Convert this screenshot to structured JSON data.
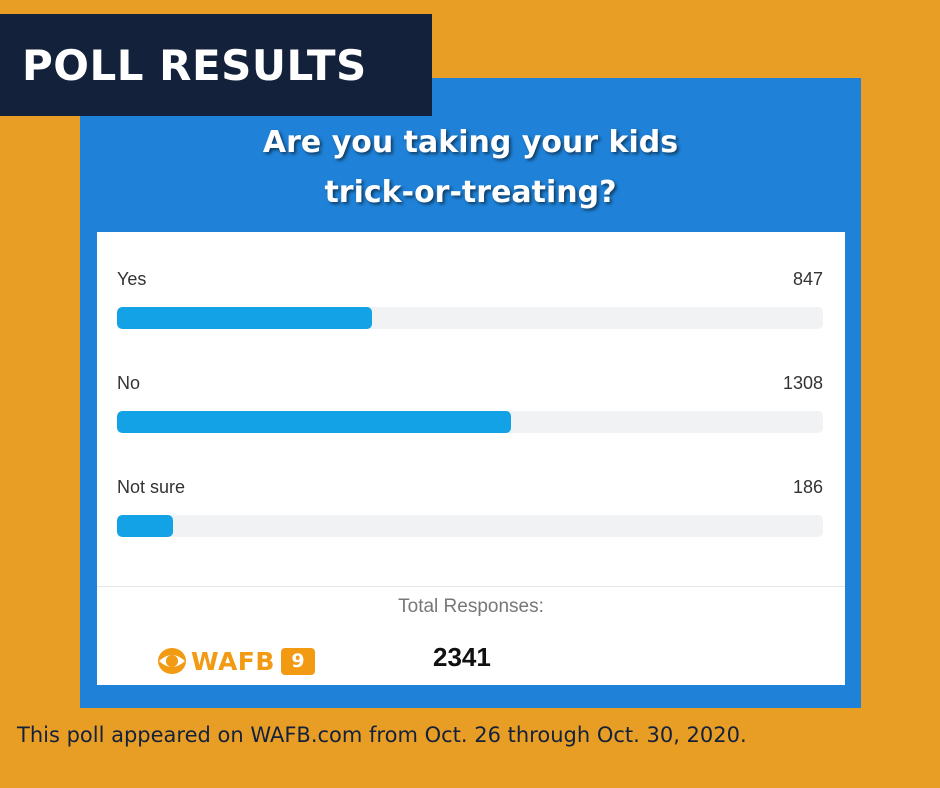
{
  "header": {
    "badge": "POLL RESULTS"
  },
  "question": {
    "line1": "Are you taking your kids",
    "line2": "trick-or-treating?"
  },
  "chart_data": {
    "type": "bar",
    "orientation": "horizontal",
    "categories": [
      "Yes",
      "No",
      "Not sure"
    ],
    "values": [
      847,
      1308,
      186
    ],
    "total": 2341,
    "title": "Are you taking your kids trick-or-treating?",
    "grid": false,
    "legend": "none"
  },
  "totals": {
    "label": "Total Responses:",
    "value": "2341"
  },
  "logo": {
    "text": "WAFB",
    "channel": "9"
  },
  "footnote": "This poll appeared on WAFB.com from Oct. 26 through Oct. 30, 2020.",
  "colors": {
    "background": "#e89e25",
    "panel": "#1f82d8",
    "badge": "#14213b",
    "bar": "#13a2e6",
    "track": "#f1f2f4",
    "logo": "#f29a12"
  }
}
